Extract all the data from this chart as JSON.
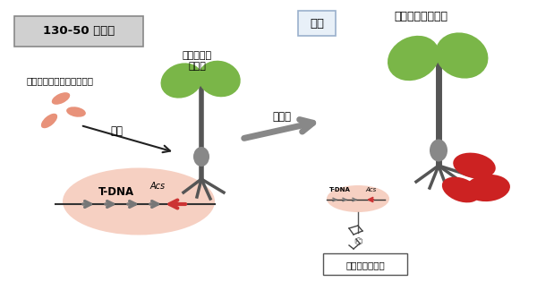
{
  "bg_color": "#ffffff",
  "left_box_text": "130-50 万年前",
  "left_box_bg": "#d0d0d0",
  "modern_box_text": "現代",
  "modern_box_bg": "#e8f0f8",
  "modern_box_border": "#9ab0cc",
  "cultivar_text": "サツマイモ栽培種",
  "ancestor_label1": "サツマイモ",
  "ancestor_label2": "祖先種",
  "bacteria_label1": "病原性アグロバクテリウム",
  "infection_label": "感染",
  "cultivation_label": "栽培化",
  "tdna_label": "T-DNA",
  "acs_label": "Acs",
  "agro_label": "アグロシノビン",
  "ellipse_color": "#f5c8b8",
  "leaf_green": "#7ab648",
  "stem_color": "#555555",
  "root_color": "#555555",
  "bacteria_color": "#e8927a",
  "arrow_color": "#777777",
  "red_arrow_color": "#cc3333",
  "sweet_potato_red": "#cc2222"
}
